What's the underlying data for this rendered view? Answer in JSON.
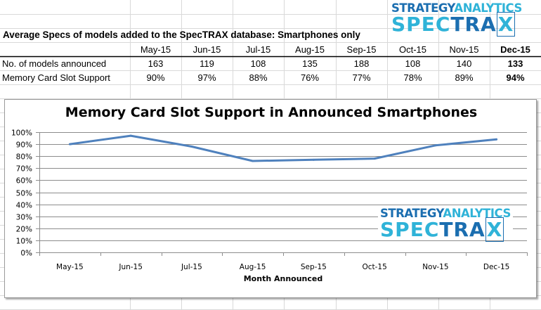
{
  "table": {
    "title": "Average Specs of models added to the SpecTRAX database: Smartphones only",
    "columns": [
      "May-15",
      "Jun-15",
      "Jul-15",
      "Aug-15",
      "Sep-15",
      "Oct-15",
      "Nov-15",
      "Dec-15"
    ],
    "rows": [
      {
        "label": "No. of models announced",
        "values": [
          "163",
          "119",
          "108",
          "135",
          "188",
          "108",
          "140",
          "133"
        ]
      },
      {
        "label": "Memory Card Slot Support",
        "values": [
          "90%",
          "97%",
          "88%",
          "76%",
          "77%",
          "78%",
          "89%",
          "94%"
        ]
      }
    ]
  },
  "logo": {
    "line1a": "STRATEGY",
    "line1b": "ANALYTICS",
    "line2a": "SPEC",
    "line2b": "TRA",
    "line2c": "X"
  },
  "colors": {
    "series": "#4f81bd",
    "logo_dark": "#1b6eb0",
    "logo_light": "#2fb3d8",
    "gridline": "#8c8c8c"
  },
  "chart_data": {
    "type": "line",
    "title": "Memory Card Slot Support in Announced Smartphones",
    "xlabel": "Month Announced",
    "ylabel": "",
    "categories": [
      "May-15",
      "Jun-15",
      "Jul-15",
      "Aug-15",
      "Sep-15",
      "Oct-15",
      "Nov-15",
      "Dec-15"
    ],
    "series": [
      {
        "name": "Memory Card Slot Support",
        "values": [
          90,
          97,
          88,
          76,
          77,
          78,
          89,
          94
        ]
      }
    ],
    "ylim": [
      0,
      100
    ],
    "yticks": [
      "0%",
      "10%",
      "20%",
      "30%",
      "40%",
      "50%",
      "60%",
      "70%",
      "80%",
      "90%",
      "100%"
    ],
    "grid": true,
    "legend": "none"
  }
}
